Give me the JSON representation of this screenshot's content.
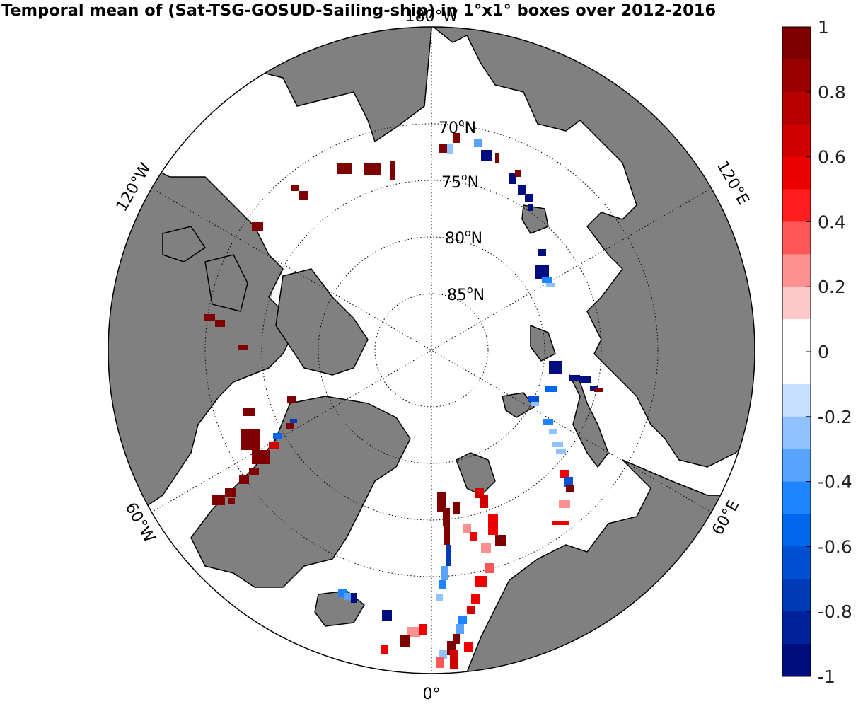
{
  "title": "Temporal mean of (Sat-TSG-GOSUD-Sailing-ship) in 1°x1° boxes over 2012-2016",
  "map": {
    "projection": "north polar stereographic",
    "latitude_labels": [
      "70",
      "75",
      "80",
      "85"
    ],
    "latitude_suffix": "N",
    "longitude_labels": {
      "top": "180°W",
      "upper_left": "120°W",
      "upper_right": "120°E",
      "lower_left": "60°W",
      "lower_right": "60°E",
      "bottom": "0°"
    },
    "colors": {
      "land": "#808080",
      "ocean": "#ffffff",
      "coast": "#000000"
    }
  },
  "colorbar": {
    "ticks": [
      "1",
      "0.8",
      "0.6",
      "0.4",
      "0.2",
      "0",
      "-0.2",
      "-0.4",
      "-0.6",
      "-0.8",
      "-1"
    ],
    "range": [
      -1,
      1
    ],
    "levels": [
      "#7f0000",
      "#9b0000",
      "#b60000",
      "#d10000",
      "#ee0000",
      "#ff1e1e",
      "#ff5757",
      "#ff9090",
      "#ffc8c8",
      "#ffffff",
      "#ffffff",
      "#c8e0ff",
      "#90c2ff",
      "#57a3ff",
      "#1e84ff",
      "#0066ee",
      "#0050d1",
      "#003ab6",
      "#00239b",
      "#000d7f"
    ]
  }
}
